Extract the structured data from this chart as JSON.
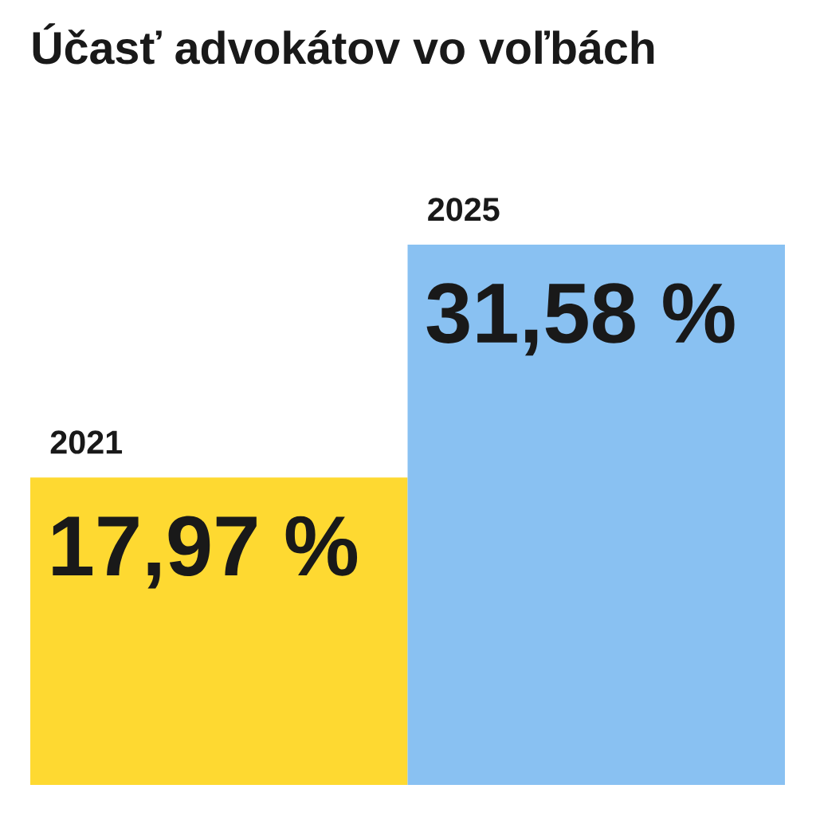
{
  "chart_data": {
    "type": "bar",
    "title": "Účasť advokátov vo voľbách",
    "categories": [
      "2021",
      "2025"
    ],
    "values": [
      17.97,
      31.58
    ],
    "colors": [
      "#fed931",
      "#89c1f2"
    ],
    "value_labels": [
      "17,97 %",
      "31,58 %"
    ]
  }
}
